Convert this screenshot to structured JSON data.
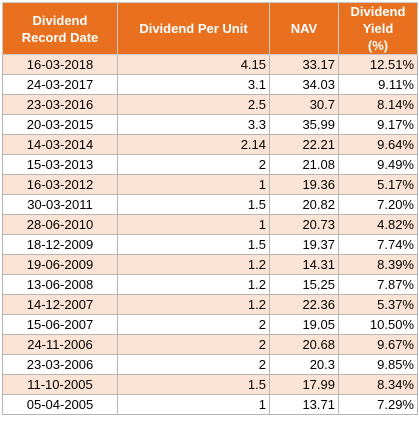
{
  "table": {
    "headers": [
      [
        "Dividend",
        "Record Date"
      ],
      [
        "Dividend Per Unit"
      ],
      [
        "NAV"
      ],
      [
        "Dividend Yield",
        "(%)"
      ]
    ],
    "rows": [
      [
        "16-03-2018",
        "4.15",
        "33.17",
        "12.51%"
      ],
      [
        "24-03-2017",
        "3.1",
        "34.03",
        "9.11%"
      ],
      [
        "23-03-2016",
        "2.5",
        "30.7",
        "8.14%"
      ],
      [
        "20-03-2015",
        "3.3",
        "35.99",
        "9.17%"
      ],
      [
        "14-03-2014",
        "2.14",
        "22.21",
        "9.64%"
      ],
      [
        "15-03-2013",
        "2",
        "21.08",
        "9.49%"
      ],
      [
        "16-03-2012",
        "1",
        "19.36",
        "5.17%"
      ],
      [
        "30-03-2011",
        "1.5",
        "20.82",
        "7.20%"
      ],
      [
        "28-06-2010",
        "1",
        "20.73",
        "4.82%"
      ],
      [
        "18-12-2009",
        "1.5",
        "19.37",
        "7.74%"
      ],
      [
        "19-06-2009",
        "1.2",
        "14.31",
        "8.39%"
      ],
      [
        "13-06-2008",
        "1.2",
        "15.25",
        "7.87%"
      ],
      [
        "14-12-2007",
        "1.2",
        "22.36",
        "5.37%"
      ],
      [
        "15-06-2007",
        "2",
        "19.05",
        "10.50%"
      ],
      [
        "24-11-2006",
        "2",
        "20.68",
        "9.67%"
      ],
      [
        "23-03-2006",
        "2",
        "20.3",
        "9.85%"
      ],
      [
        "11-10-2005",
        "1.5",
        "17.99",
        "8.34%"
      ],
      [
        "05-04-2005",
        "1",
        "13.71",
        "7.29%"
      ]
    ]
  },
  "colors": {
    "header_bg": "#e8701e",
    "header_text": "#ffffff",
    "stripe_bg": "#fbe4d5"
  }
}
